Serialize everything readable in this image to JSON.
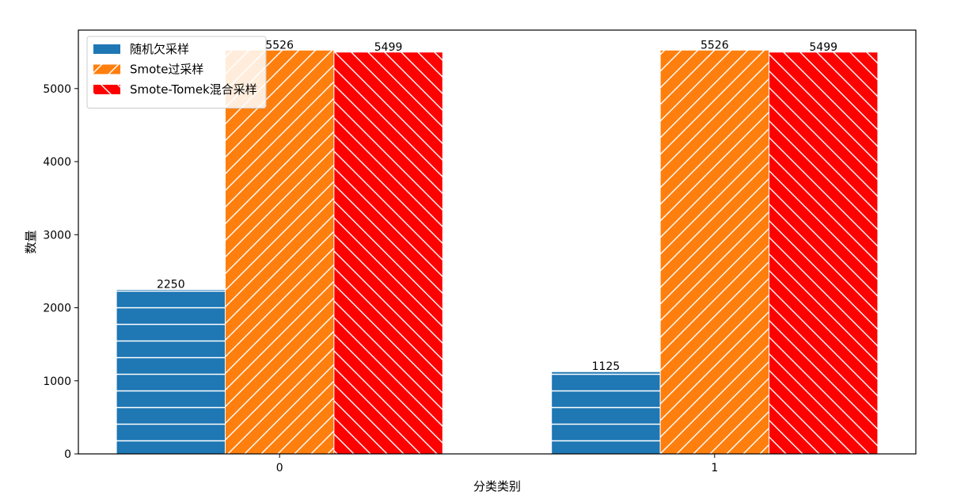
{
  "chart_data": {
    "type": "bar",
    "title": "",
    "xlabel": "分类类别",
    "ylabel": "数量",
    "categories": [
      "0",
      "1"
    ],
    "ylim": [
      0,
      5800
    ],
    "yticks": [
      0,
      1000,
      2000,
      3000,
      4000,
      5000
    ],
    "grid": false,
    "legend_position": "top-left",
    "series": [
      {
        "name": "随机欠采样",
        "values": [
          2250,
          1125
        ],
        "color": "#1f77b4",
        "hatch": "horizontal"
      },
      {
        "name": "Smote过采样",
        "values": [
          5526,
          5526
        ],
        "color": "#ff7f0e",
        "hatch": "forward-diagonal"
      },
      {
        "name": "Smote-Tomek混合采样",
        "values": [
          5499,
          5499
        ],
        "color": "#ff0000",
        "hatch": "back-diagonal"
      }
    ]
  }
}
